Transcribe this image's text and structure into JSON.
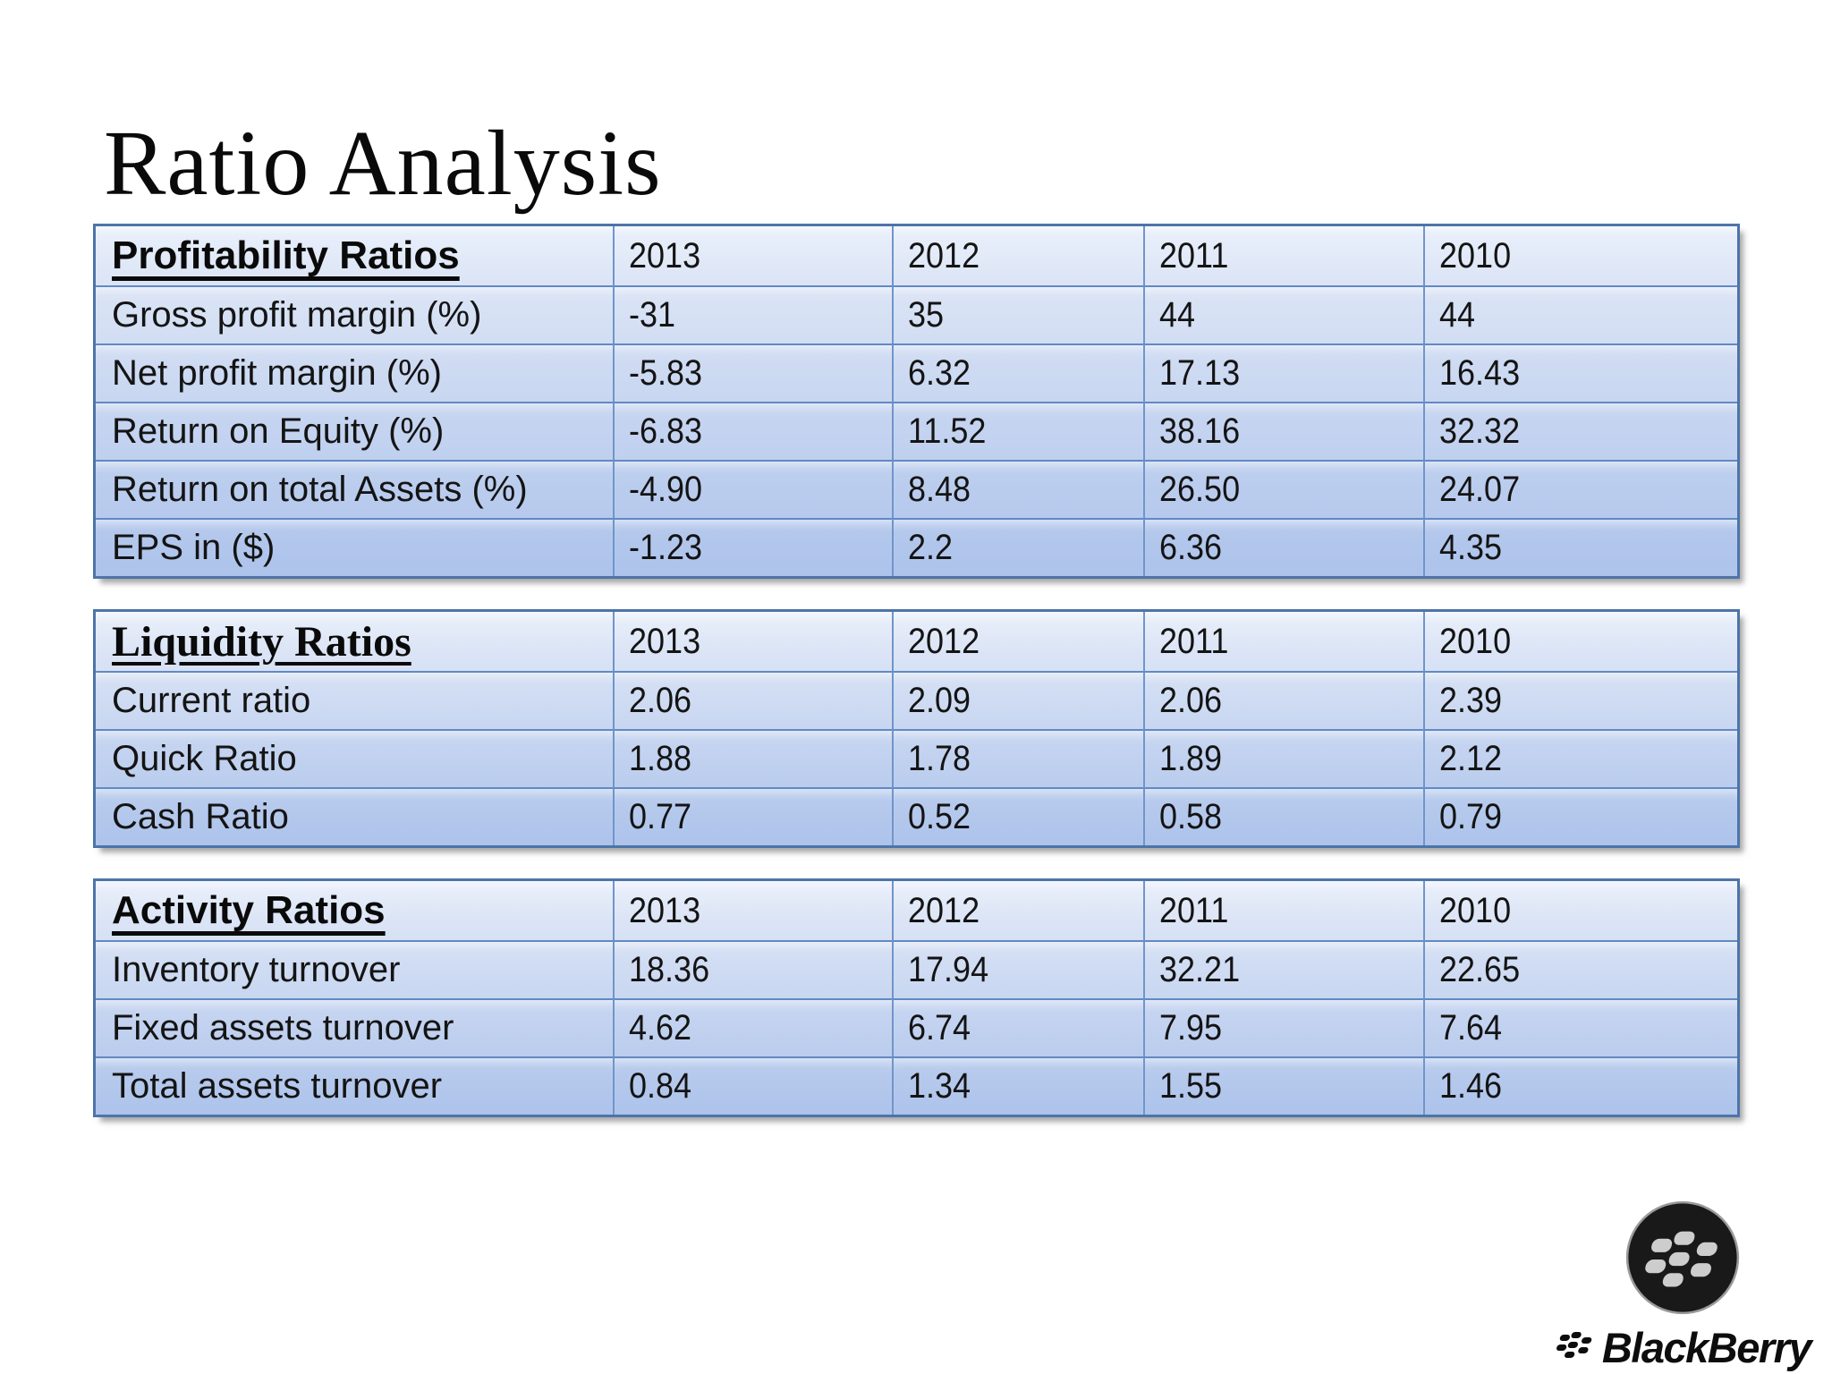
{
  "slide_title": "Ratio Analysis",
  "tables": [
    {
      "header": "Profitability Ratios",
      "years": [
        "2013",
        "2012",
        "2011",
        "2010"
      ],
      "rows": [
        {
          "label": "Gross profit margin (%)",
          "values": [
            "-31",
            "35",
            "44",
            "44"
          ]
        },
        {
          "label": "Net profit margin (%)",
          "values": [
            "-5.83",
            "6.32",
            "17.13",
            "16.43"
          ]
        },
        {
          "label": "Return on Equity (%)",
          "values": [
            "-6.83",
            "11.52",
            "38.16",
            "32.32"
          ]
        },
        {
          "label": "Return on total Assets (%)",
          "values": [
            "-4.90",
            "8.48",
            "26.50",
            "24.07"
          ]
        },
        {
          "label": "EPS in ($)",
          "values": [
            "-1.23",
            "2.2",
            "6.36",
            "4.35"
          ]
        }
      ]
    },
    {
      "header": "Liquidity Ratios",
      "years": [
        "2013",
        "2012",
        "2011",
        "2010"
      ],
      "rows": [
        {
          "label": "Current ratio",
          "values": [
            "2.06",
            "2.09",
            "2.06",
            "2.39"
          ]
        },
        {
          "label": "Quick Ratio",
          "values": [
            "1.88",
            "1.78",
            "1.89",
            "2.12"
          ]
        },
        {
          "label": "Cash Ratio",
          "values": [
            "0.77",
            "0.52",
            "0.58",
            "0.79"
          ]
        }
      ]
    },
    {
      "header": "Activity Ratios",
      "years": [
        "2013",
        "2012",
        "2011",
        "2010"
      ],
      "rows": [
        {
          "label": "Inventory turnover",
          "values": [
            "18.36",
            "17.94",
            "32.21",
            "22.65"
          ]
        },
        {
          "label": "Fixed assets turnover",
          "values": [
            "4.62",
            "6.74",
            "7.95",
            "7.64"
          ]
        },
        {
          "label": "Total assets turnover",
          "values": [
            "0.84",
            "1.34",
            "1.55",
            "1.46"
          ]
        }
      ]
    }
  ],
  "logo": {
    "brand": "BlackBerry",
    "circle_icon": "blackberry-circle-icon",
    "glyph_icon": "blackberry-glyph-icon"
  }
}
